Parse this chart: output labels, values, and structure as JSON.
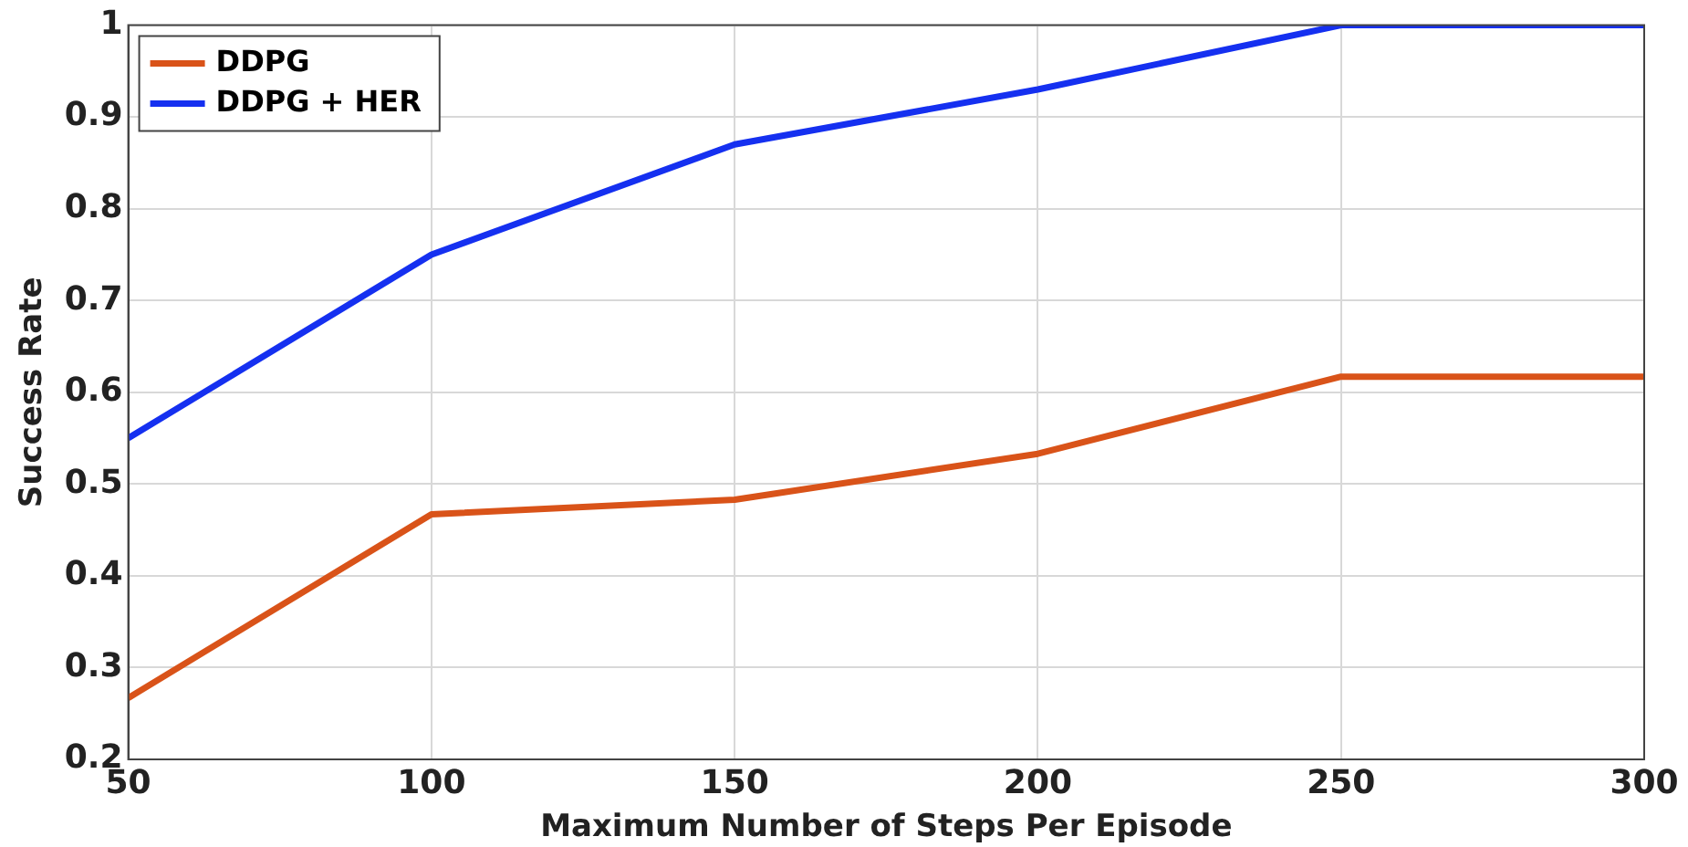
{
  "chart_data": {
    "type": "line",
    "xlabel": "Maximum Number of Steps Per Episode",
    "ylabel": "Success Rate",
    "x": [
      50,
      100,
      150,
      200,
      250,
      300
    ],
    "series": [
      {
        "name": "DDPG",
        "color": "#d95319",
        "values": [
          0.267,
          0.467,
          0.483,
          0.533,
          0.617,
          0.617
        ]
      },
      {
        "name": "DDPG + HER",
        "color": "#1530f0",
        "values": [
          0.55,
          0.75,
          0.87,
          0.93,
          1.0,
          1.0
        ]
      }
    ],
    "xlim": [
      50,
      300
    ],
    "xticks": [
      50,
      100,
      150,
      200,
      250,
      300
    ],
    "ylim": [
      0.2,
      1
    ],
    "yticks": [
      0.2,
      0.3,
      0.4,
      0.5,
      0.6,
      0.7,
      0.8,
      0.9,
      1
    ],
    "grid": true,
    "legend": "top left",
    "marker": "none",
    "line_style": "solid"
  }
}
